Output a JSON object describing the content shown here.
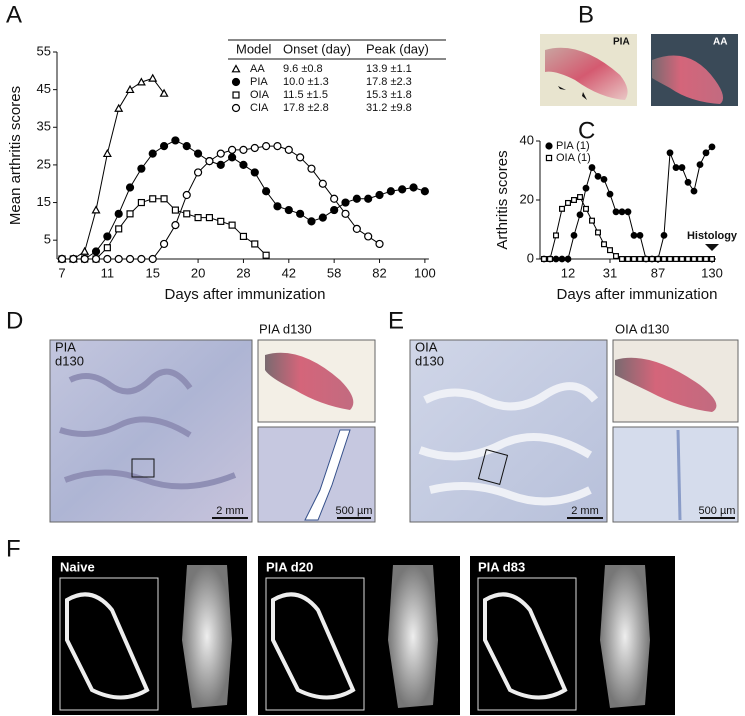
{
  "panel_labels": [
    "A",
    "B",
    "C",
    "D",
    "E",
    "F"
  ],
  "chart_data": [
    {
      "type": "line",
      "xlabel": "Days after immunization",
      "ylabel": "Mean arthritis scores",
      "categories": [
        7,
        null,
        null,
        null,
        11,
        null,
        null,
        null,
        15,
        null,
        null,
        null,
        20,
        null,
        null,
        null,
        28,
        null,
        null,
        null,
        42,
        null,
        null,
        null,
        58,
        null,
        null,
        null,
        82,
        null,
        null,
        null,
        100
      ],
      "ylim": [
        0,
        55
      ],
      "yticks": [
        5,
        15,
        25,
        35,
        45,
        55
      ],
      "series": [
        {
          "name": "AA",
          "marker": "triangle",
          "color": "#000000",
          "values": [
            0,
            0,
            2,
            13,
            28,
            40,
            45,
            47,
            48,
            44,
            null,
            null,
            null,
            null,
            null,
            null,
            null,
            null,
            null,
            null,
            null,
            null,
            null,
            null,
            null,
            null,
            null,
            null,
            null,
            null,
            null,
            null,
            null
          ]
        },
        {
          "name": "PIA",
          "marker": "circle-filled",
          "color": "#000000",
          "values": [
            0,
            0,
            0,
            2,
            6,
            12,
            19,
            24,
            28,
            30,
            31.5,
            30,
            28,
            26,
            25,
            27,
            25,
            23,
            18,
            14,
            13,
            12,
            10,
            11,
            13,
            15,
            16,
            16,
            17,
            18,
            18.5,
            19,
            18
          ]
        },
        {
          "name": "OIA",
          "marker": "square",
          "color": "#000000",
          "values": [
            0,
            0,
            0,
            0,
            3,
            8,
            12,
            15,
            16,
            16,
            13,
            12,
            11,
            11,
            10,
            9,
            6,
            4,
            1,
            null,
            null,
            null,
            null,
            null,
            null,
            null,
            null,
            null,
            null,
            null,
            null,
            null,
            null
          ]
        },
        {
          "name": "CIA",
          "marker": "circle",
          "color": "#000000",
          "values": [
            0,
            0,
            0,
            0,
            0,
            0,
            0,
            0,
            0,
            4,
            9,
            17,
            23,
            26,
            28,
            29,
            29,
            29.5,
            30,
            30,
            29,
            27,
            24,
            20,
            16,
            12,
            8,
            6,
            4,
            null,
            null,
            null,
            null
          ]
        }
      ],
      "table": {
        "columns": [
          "Model",
          "Onset (day)",
          "Peak (day)"
        ],
        "rows": [
          [
            "9.6 ±0.8",
            "13.9 ±1.1"
          ],
          [
            "10.0 ±1.3",
            "17.8 ±2.3"
          ],
          [
            "11.5 ±1.5",
            "15.3 ±1.8"
          ],
          [
            "17.8 ±2.8",
            "31.2 ±9.8"
          ]
        ]
      }
    },
    {
      "type": "line",
      "xlabel": "Days after immunization",
      "ylabel": "Arthritis scores",
      "categories": [
        null,
        null,
        null,
        null,
        12,
        null,
        null,
        null,
        null,
        null,
        null,
        31,
        null,
        null,
        null,
        null,
        null,
        null,
        null,
        87,
        null,
        null,
        null,
        null,
        null,
        null,
        null,
        null,
        130
      ],
      "ylim": [
        0,
        40
      ],
      "yticks": [
        0,
        20,
        40
      ],
      "series": [
        {
          "name": "PIA (1)",
          "marker": "circle-filled",
          "color": "#000000",
          "values": [
            0,
            0,
            0,
            0,
            0,
            8,
            15,
            24,
            31,
            28,
            27,
            22,
            16,
            16,
            16,
            8,
            8,
            0,
            0,
            0,
            8,
            36,
            31,
            31,
            26,
            23,
            32,
            36,
            38
          ]
        },
        {
          "name": "OIA (1)",
          "marker": "square",
          "color": "#000000",
          "values": [
            0,
            0,
            8,
            17,
            19,
            20,
            21,
            17,
            13,
            9,
            5,
            3,
            1,
            0,
            0,
            0,
            0,
            0,
            0,
            0,
            0,
            0,
            0,
            0,
            0,
            0,
            0,
            0,
            0
          ]
        }
      ],
      "annotation": "Histology"
    }
  ],
  "panel_b": {
    "labels": [
      "PIA",
      "AA"
    ]
  },
  "panel_d": {
    "main_label": [
      "PIA",
      "d130"
    ],
    "main_scale": "2 mm",
    "inset_title": "PIA d130",
    "inset_scale": "500 µm"
  },
  "panel_e": {
    "main_label": [
      "OIA",
      "d130"
    ],
    "main_scale": "2 mm",
    "inset_title": "OIA d130",
    "inset_scale": "500 µm"
  },
  "panel_f": {
    "labels": [
      "Naive",
      "PIA d20",
      "PIA d83"
    ]
  }
}
